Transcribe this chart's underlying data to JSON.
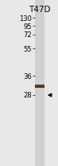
{
  "title": "T47D",
  "mw_labels": [
    "130",
    "95",
    "72",
    "55",
    "36",
    "28"
  ],
  "mw_positions": [
    130,
    95,
    72,
    55,
    36,
    28
  ],
  "band_mw": 31.5,
  "arrow_mw": 28,
  "bg_color": "#e8e8e8",
  "lane_bg_color": "#d0d0d0",
  "band_color": "#4a3010",
  "title_fontsize": 7.5,
  "label_fontsize": 6.0
}
